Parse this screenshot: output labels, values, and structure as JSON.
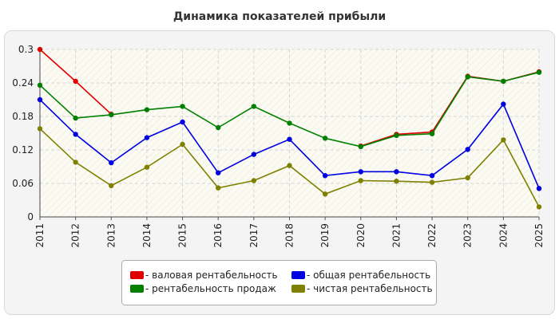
{
  "chart_data": {
    "type": "line",
    "title": "Динамика показателей прибыли",
    "x": [
      "2011",
      "2012",
      "2013",
      "2014",
      "2015",
      "2016",
      "2017",
      "2018",
      "2019",
      "2020",
      "2021",
      "2022",
      "2023",
      "2024",
      "2025"
    ],
    "ylim": [
      0,
      0.3
    ],
    "yticks": [
      "0",
      "0.06",
      "0.12",
      "0.18",
      "0.24",
      "0.3"
    ],
    "grid": true,
    "legend_position": "bottom",
    "series": [
      {
        "name": "- валовая рентабельность",
        "color": "#e00000",
        "values": [
          0.3,
          0.243,
          0.184,
          null,
          null,
          null,
          null,
          null,
          null,
          0.127,
          0.148,
          0.152,
          0.252,
          0.243,
          0.26
        ]
      },
      {
        "name": "- общая рентабельность",
        "color": "#0000e0",
        "values": [
          0.21,
          0.148,
          0.097,
          0.142,
          0.17,
          0.079,
          0.112,
          0.139,
          0.074,
          0.081,
          0.081,
          0.074,
          0.121,
          0.202,
          0.051
        ]
      },
      {
        "name": "- рентабельность продаж",
        "color": "#008000",
        "values": [
          0.236,
          0.177,
          0.183,
          0.192,
          0.198,
          0.16,
          0.198,
          0.168,
          0.141,
          0.126,
          0.146,
          0.149,
          0.251,
          0.243,
          0.259
        ]
      },
      {
        "name": "- чистая рентабельность",
        "color": "#808000",
        "values": [
          0.158,
          0.098,
          0.056,
          0.089,
          0.13,
          0.052,
          0.065,
          0.092,
          0.041,
          0.065,
          0.064,
          0.062,
          0.07,
          0.138,
          0.018
        ]
      }
    ]
  }
}
